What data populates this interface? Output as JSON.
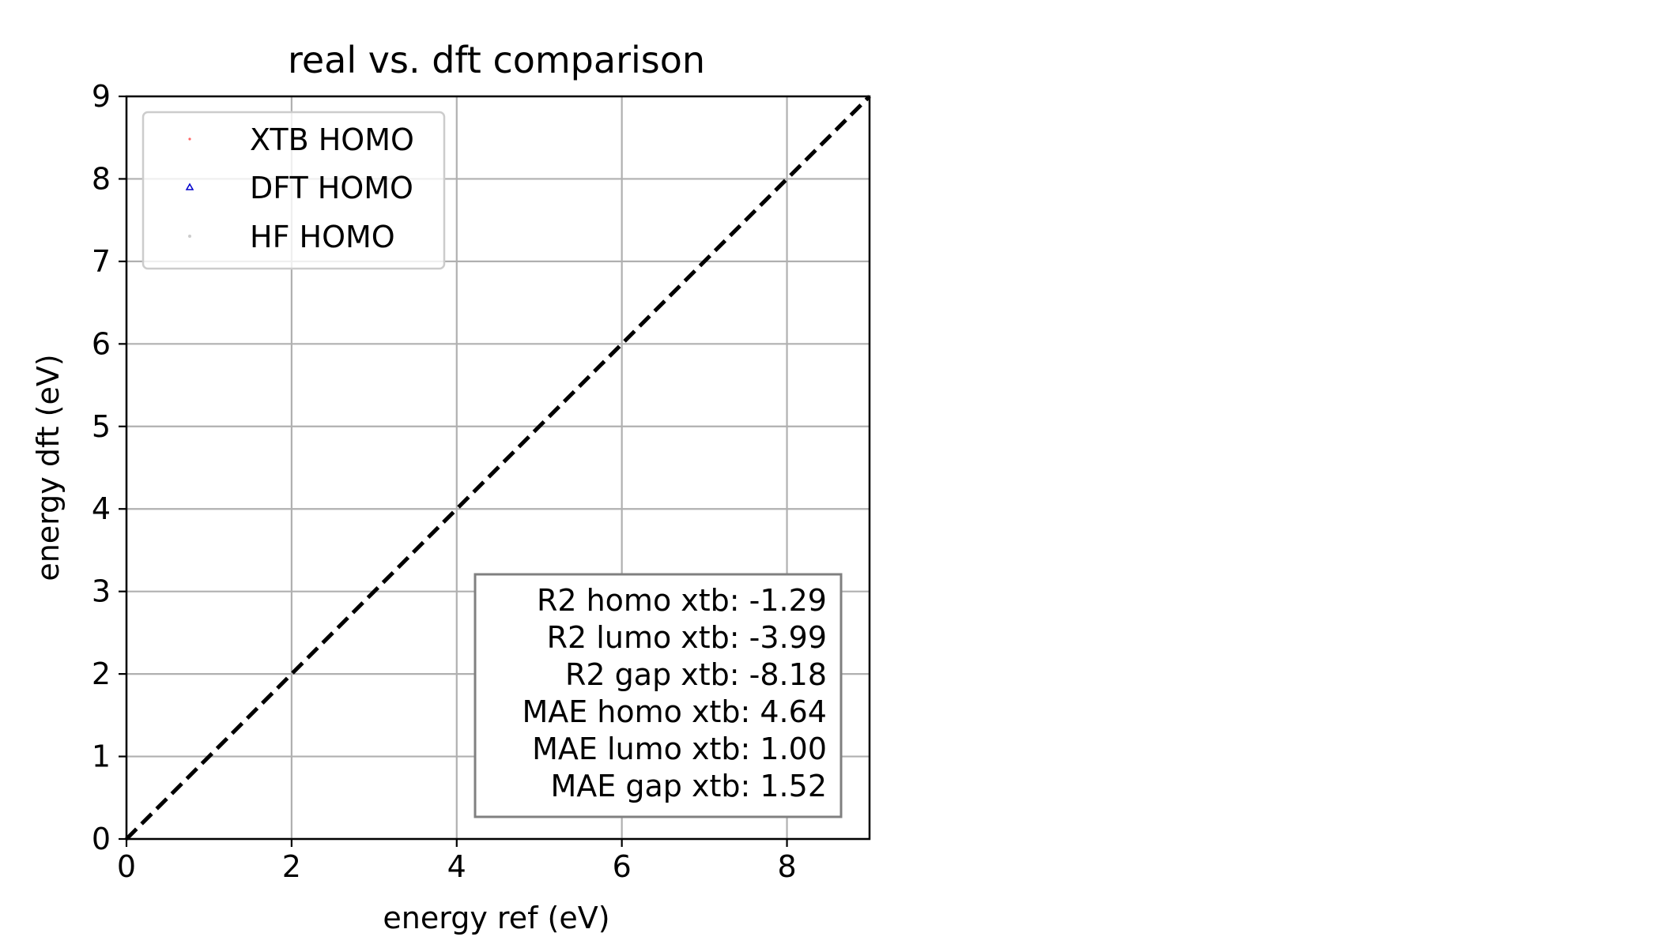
{
  "chart_data": {
    "type": "scatter",
    "title": "real vs. dft comparison",
    "xlabel": "energy ref (eV)",
    "ylabel": "energy dft (eV)",
    "xlim": [
      0,
      9
    ],
    "ylim": [
      0,
      9
    ],
    "xticks": [
      0,
      2,
      4,
      6,
      8
    ],
    "yticks": [
      0,
      1,
      2,
      3,
      4,
      5,
      6,
      7,
      8,
      9
    ],
    "grid": true,
    "legend_position": "upper-left",
    "series": [
      {
        "name": "XTB HOMO",
        "marker": "point",
        "color": "#ff6666",
        "points": []
      },
      {
        "name": "DFT HOMO",
        "marker": "triangle",
        "color": "#0000cc",
        "points": []
      },
      {
        "name": "HF HOMO",
        "marker": "point",
        "color": "#cccccc",
        "points": []
      }
    ],
    "reference_line": {
      "from": [
        0,
        0
      ],
      "to": [
        9,
        9
      ],
      "style": "dashed",
      "color": "#000000"
    },
    "stats_box": {
      "position": "lower-right",
      "lines": [
        "R2 homo xtb: -1.29",
        "R2 lumo xtb: -3.99",
        "R2 gap xtb: -8.18",
        "MAE homo xtb: 4.64",
        "MAE lumo xtb: 1.00",
        "MAE gap xtb: 1.52"
      ]
    }
  }
}
